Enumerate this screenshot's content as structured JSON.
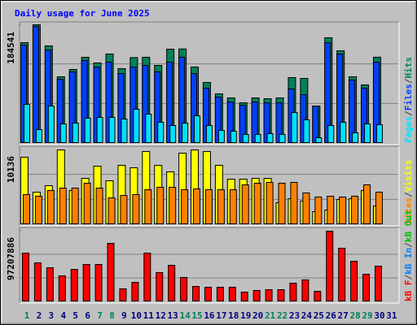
{
  "chart_data": [
    {
      "type": "bar",
      "title": "Daily usage for June 2025",
      "ylim": [
        0,
        184541
      ],
      "yticks": [
        184541
      ],
      "separator": "/",
      "series": [
        {
          "name": "Hits",
          "color": "#00805c",
          "values": [
            156736,
            184541,
            151680,
            103648,
            115024,
            133984,
            125136,
            139040,
            116288,
            133500,
            134000,
            121344,
            146624,
            146900,
            118816,
            94800,
            77104,
            70784,
            63200,
            70784,
            69520,
            70800,
            102384,
            101120,
            58144,
            164320,
            144096,
            103600,
            91008,
            134100,
            0
          ]
        },
        {
          "name": "Files",
          "color": "#0040ff",
          "values": [
            152944,
            182016,
            145360,
            99856,
            111232,
            128928,
            118816,
            126400,
            108704,
            118816,
            121344,
            111232,
            126400,
            133984,
            108700,
            85952,
            72048,
            64464,
            59408,
            64470,
            63200,
            63210,
            84688,
            75840,
            58144,
            156736,
            139040,
            98592,
            85950,
            126410,
            0
          ]
        },
        {
          "name": "Pages",
          "color": "#00e0ff",
          "values": [
            60672,
            21488,
            58144,
            30336,
            31600,
            39184,
            40448,
            40450,
            37920,
            53088,
            45504,
            32864,
            27808,
            31600,
            42976,
            27810,
            20224,
            18960,
            13904,
            13910,
            15168,
            13900,
            48032,
            36656,
            8848,
            27800,
            32860,
            16432,
            30336,
            29072,
            0
          ]
        }
      ]
    },
    {
      "type": "bar",
      "ylim": [
        0,
        10136
      ],
      "yticks": [
        10136
      ],
      "separator": "/",
      "series": [
        {
          "name": "Visits",
          "color": "#ffff00",
          "values": [
            9147,
            4408,
            5290,
            10136,
            4628,
            6281,
            7934,
            5951,
            8045,
            7714,
            9918,
            8040,
            7163,
            9698,
            10130,
            9910,
            8050,
            6171,
            6170,
            6281,
            6280,
            2975,
            3526,
            3196,
            1763,
            1984,
            3416,
            3526,
            4628,
            2535,
            0
          ]
        },
        {
          "name": "Sites",
          "color": "#ff8000",
          "values": [
            4077,
            3857,
            4628,
            4959,
            4960,
            5620,
            4958,
            3637,
            3967,
            4077,
            4739,
            5069,
            5070,
            4740,
            4849,
            4738,
            4737,
            4741,
            5400,
            5620,
            5730,
            5621,
            5731,
            4298,
            3747,
            3857,
            3748,
            3858,
            5399,
            4408,
            0
          ]
        }
      ]
    },
    {
      "type": "bar",
      "ylim": [
        0,
        97207886
      ],
      "yticks": [
        97207886
      ],
      "separator": "/",
      "series": [
        {
          "name": "kB F",
          "color": "#ff0000",
          "values": [
            67040000,
            53632000,
            46928000,
            35755000,
            44693000,
            51397000,
            51400000,
            80448000,
            17877000,
            26816000,
            67040000,
            40224000,
            50280000,
            33520000,
            21229000,
            20112000,
            20110000,
            20115000,
            13408000,
            15643000,
            16760000,
            16762000,
            25699000,
            30168000,
            14525000,
            97207886,
            73744000,
            55867000,
            37989000,
            49163000,
            0
          ]
        }
      ],
      "legend_only": [
        {
          "name": "kB In",
          "color": "#0080ff"
        },
        {
          "name": "kB Out",
          "color": "#00c000"
        }
      ],
      "categories": [
        "1",
        "2",
        "3",
        "4",
        "5",
        "6",
        "7",
        "8",
        "9",
        "10",
        "11",
        "12",
        "13",
        "14",
        "15",
        "16",
        "17",
        "18",
        "19",
        "20",
        "21",
        "22",
        "23",
        "24",
        "25",
        "26",
        "27",
        "28",
        "29",
        "30",
        "31"
      ],
      "category_colors": [
        "#00805c",
        "#000080",
        "#000080",
        "#000080",
        "#000080",
        "#000080",
        "#00805c",
        "#00805c",
        "#000080",
        "#000080",
        "#000080",
        "#000080",
        "#000080",
        "#00805c",
        "#00805c",
        "#000080",
        "#000080",
        "#000080",
        "#000080",
        "#000080",
        "#00805c",
        "#00805c",
        "#000080",
        "#000080",
        "#000080",
        "#000080",
        "#000080",
        "#00805c",
        "#00805c",
        "#000080",
        "#000080"
      ]
    }
  ]
}
